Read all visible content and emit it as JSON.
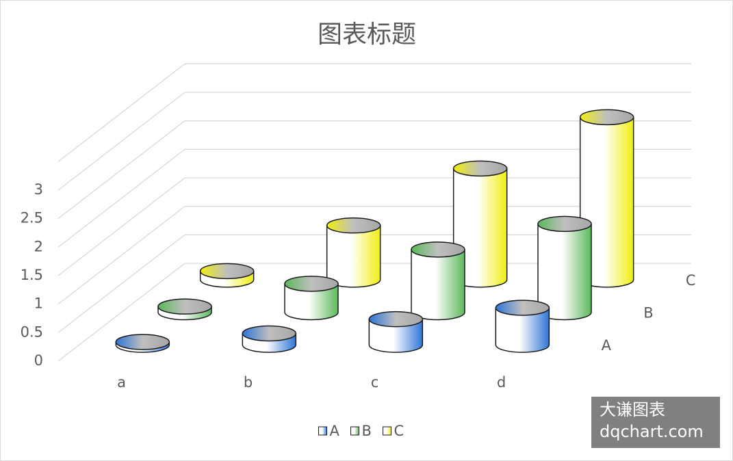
{
  "chart_data": {
    "type": "cylinder3d",
    "title": "图表标题",
    "categories": [
      "a",
      "b",
      "c",
      "d"
    ],
    "series": [
      {
        "name": "A",
        "color": "#2e75d6",
        "values": [
          0.05,
          0.2,
          0.45,
          0.65
        ]
      },
      {
        "name": "B",
        "color": "#5cb85c",
        "values": [
          0.1,
          0.5,
          1.1,
          1.55
        ]
      },
      {
        "name": "C",
        "color": "#f0ee10",
        "values": [
          0.15,
          0.95,
          1.95,
          2.85
        ]
      }
    ],
    "ylim": [
      0,
      3.5
    ],
    "yticks": [
      0,
      0.5,
      1,
      1.5,
      2,
      2.5,
      3
    ],
    "grid": true,
    "legend": "bottom"
  },
  "watermark": {
    "line1": "大谦图表",
    "line2": "dqchart.com"
  }
}
